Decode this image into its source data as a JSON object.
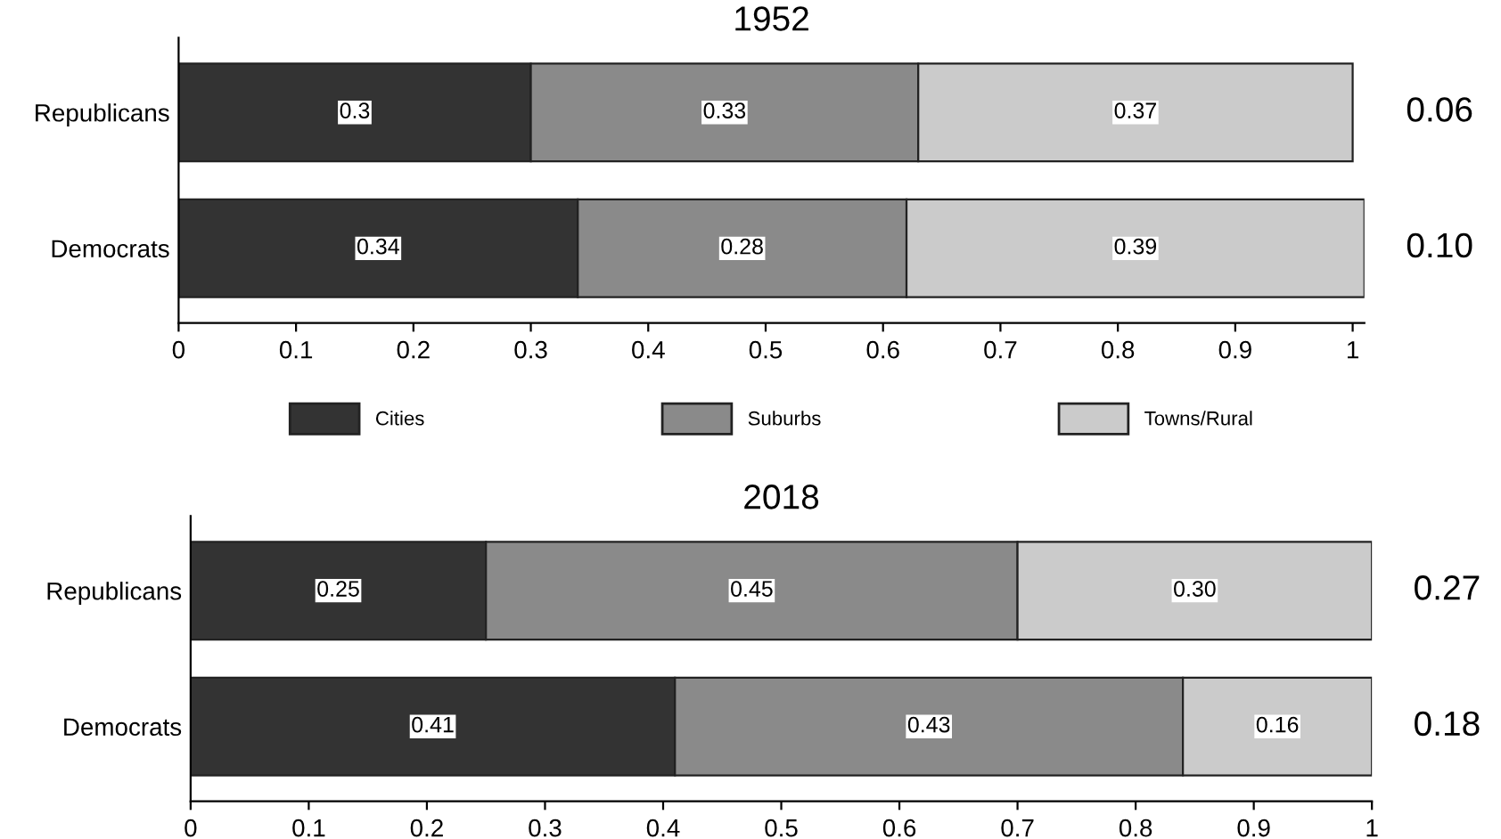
{
  "chart_data": [
    {
      "type": "bar",
      "title": "1952",
      "orientation": "horizontal",
      "stacked": true,
      "categories": [
        "Republicans",
        "Democrats"
      ],
      "xlim": [
        0,
        1.01
      ],
      "xticks": [
        0,
        0.1,
        0.2,
        0.3,
        0.4,
        0.5,
        0.6,
        0.7,
        0.8,
        0.9,
        1
      ],
      "legend": "bottom",
      "series": [
        {
          "name": "Cities",
          "color": "#333333",
          "values": [
            0.3,
            0.34
          ],
          "value_labels": [
            "0.3",
            "0.34"
          ]
        },
        {
          "name": "Suburbs",
          "color": "#8a8a8a",
          "values": [
            0.33,
            0.28
          ],
          "value_labels": [
            "0.33",
            "0.28"
          ]
        },
        {
          "name": "Towns/Rural",
          "color": "#cbcbcb",
          "values": [
            0.37,
            0.39
          ],
          "value_labels": [
            "0.37",
            "0.39"
          ]
        }
      ],
      "annotations": [
        "0.06",
        "0.10"
      ]
    },
    {
      "type": "bar",
      "title": "2018",
      "orientation": "horizontal",
      "stacked": true,
      "categories": [
        "Republicans",
        "Democrats"
      ],
      "xlim": [
        0,
        1
      ],
      "xticks": [
        0,
        0.1,
        0.2,
        0.3,
        0.4,
        0.5,
        0.6,
        0.7,
        0.8,
        0.9,
        1
      ],
      "series": [
        {
          "color": "#333333",
          "values": [
            0.25,
            0.41
          ],
          "value_labels": [
            "0.25",
            "0.41"
          ]
        },
        {
          "color": "#8a8a8a",
          "values": [
            0.45,
            0.43
          ],
          "value_labels": [
            "0.45",
            "0.43"
          ]
        },
        {
          "color": "#cbcbcb",
          "values": [
            0.3,
            0.16
          ],
          "value_labels": [
            "0.30",
            "0.16"
          ]
        }
      ],
      "annotations": [
        "0.27",
        "0.18"
      ]
    }
  ]
}
